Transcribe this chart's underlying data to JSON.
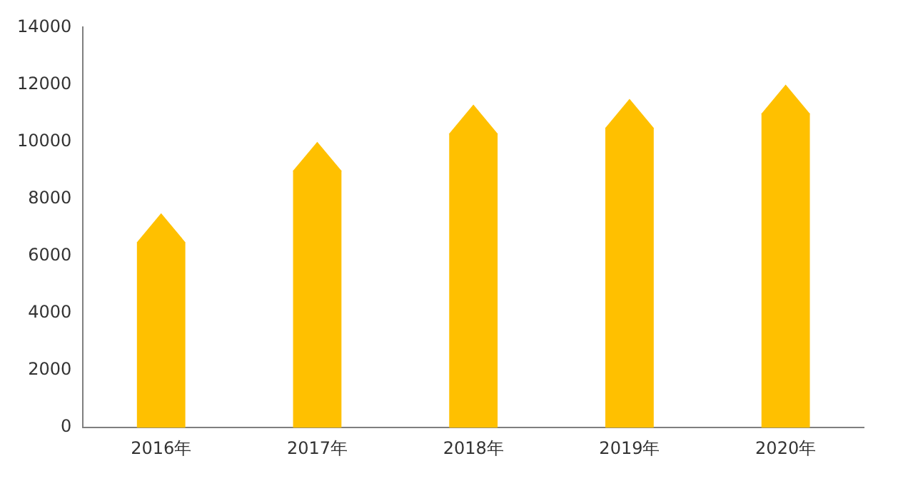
{
  "chart_data": {
    "type": "bar",
    "categories": [
      "2016年",
      "2017年",
      "2018年",
      "2019年",
      "2020年"
    ],
    "values": [
      7500,
      10000,
      11300,
      11500,
      12000
    ],
    "color": "#ffc000",
    "ylim": [
      0,
      14000
    ],
    "yticks": [
      0,
      2000,
      4000,
      6000,
      8000,
      10000,
      12000,
      14000
    ],
    "grid": false,
    "legend": false
  }
}
